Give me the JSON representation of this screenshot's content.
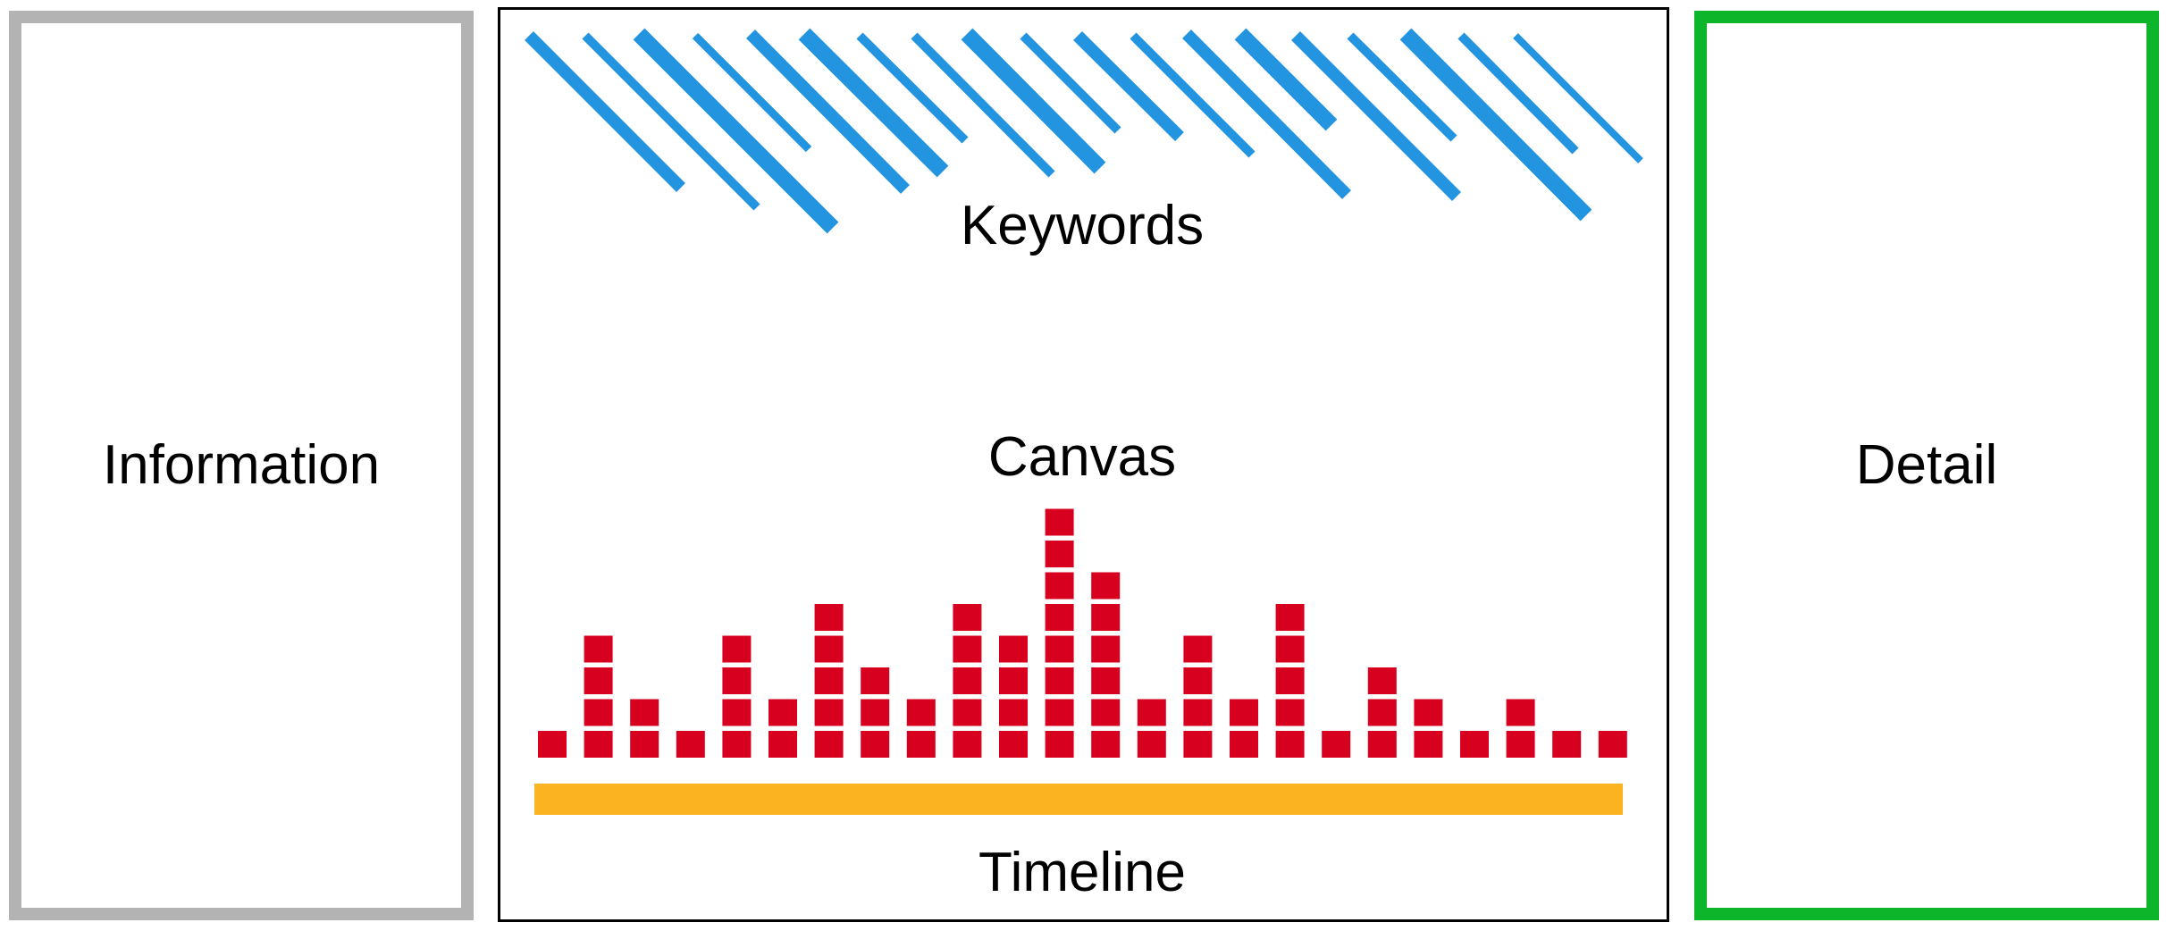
{
  "panels": {
    "information": {
      "label": "Information",
      "border_color": "#b3b3b3"
    },
    "canvas": {
      "label": "Canvas",
      "keywords_label": "Keywords",
      "timeline_label": "Timeline",
      "border_color": "#000000"
    },
    "detail": {
      "label": "Detail",
      "border_color": "#0db52a"
    }
  },
  "colors": {
    "keyword_stroke": "#2394e0",
    "block_fill": "#d7001e",
    "timeline_fill": "#fbb321"
  },
  "timeline": {
    "column_block_counts": [
      1,
      4,
      2,
      1,
      4,
      2,
      5,
      3,
      2,
      5,
      4,
      8,
      6,
      2,
      4,
      2,
      5,
      1,
      3,
      2,
      1,
      2,
      1,
      1
    ]
  }
}
